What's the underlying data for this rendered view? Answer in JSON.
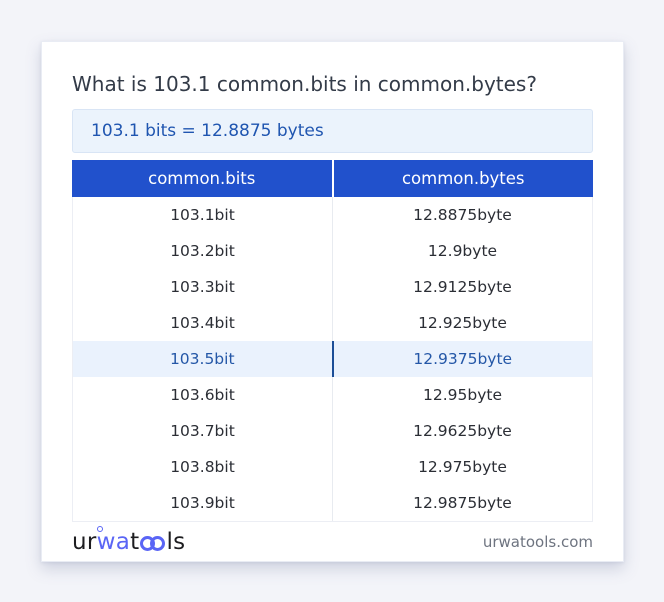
{
  "page": {
    "background_color": "#f3f4f9"
  },
  "card": {
    "title": "What is 103.1 common.bits in common.bytes?",
    "result": "103.1 bits = 12.8875 bytes"
  },
  "table": {
    "headers": [
      "common.bits",
      "common.bytes"
    ],
    "rows": [
      {
        "bits": "103.1bit",
        "bytes": "12.8875byte",
        "highlight": false
      },
      {
        "bits": "103.2bit",
        "bytes": "12.9byte",
        "highlight": false
      },
      {
        "bits": "103.3bit",
        "bytes": "12.9125byte",
        "highlight": false
      },
      {
        "bits": "103.4bit",
        "bytes": "12.925byte",
        "highlight": false
      },
      {
        "bits": "103.5bit",
        "bytes": "12.9375byte",
        "highlight": true
      },
      {
        "bits": "103.6bit",
        "bytes": "12.95byte",
        "highlight": false
      },
      {
        "bits": "103.7bit",
        "bytes": "12.9625byte",
        "highlight": false
      },
      {
        "bits": "103.8bit",
        "bytes": "12.975byte",
        "highlight": false
      },
      {
        "bits": "103.9bit",
        "bytes": "12.9875byte",
        "highlight": false
      }
    ]
  },
  "footer": {
    "logo": {
      "name": "urwatools",
      "seg1": "ur",
      "seg2": "wa",
      "seg3": "t",
      "seg4": "ls"
    },
    "domain": "urwatools.com"
  },
  "colors": {
    "header_bg": "#2151cc",
    "result_text": "#1f55b0",
    "result_bg": "#ebf3fc",
    "highlight_row_bg": "#eaf2fd",
    "highlight_row_text": "#2457a7",
    "highlight_divider": "#1c4e97",
    "logo_blue": "#5a65f5",
    "title_text": "#333b48",
    "domain_text": "#6e7480"
  }
}
